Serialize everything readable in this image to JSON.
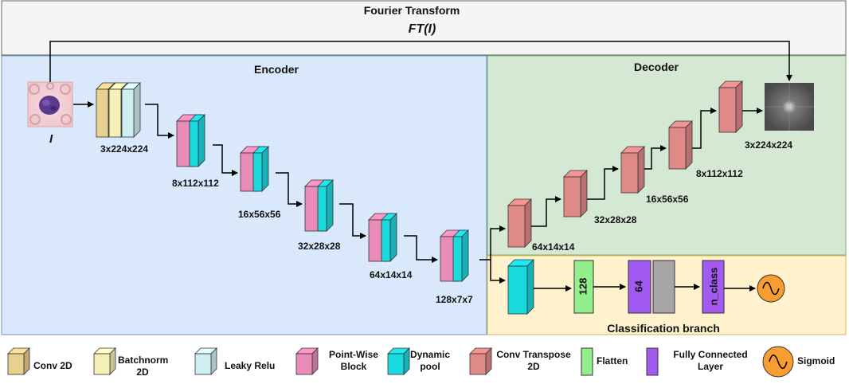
{
  "sections": {
    "fourier": {
      "title": "Fourier Transform",
      "formula": "FT(I)"
    },
    "encoder": {
      "title": "Encoder"
    },
    "decoder": {
      "title": "Decoder"
    },
    "classification": {
      "title": "Classification branch"
    }
  },
  "input_label": "I",
  "encoder_dims": [
    "3x224x224",
    "8x112x112",
    "16x56x56",
    "32x28x28",
    "64x14x14",
    "128x7x7"
  ],
  "decoder_dims": [
    "64x14x14",
    "32x28x28",
    "16x56x56",
    "8x112x112",
    "3x224x224"
  ],
  "classification_blocks": {
    "flatten": "128",
    "fc1": "64",
    "fc2": "n_class"
  },
  "legend": [
    {
      "label": "Conv 2D",
      "color": "#e8d08e"
    },
    {
      "label": "Batchnorm 2D",
      "color": "#f5efb8"
    },
    {
      "label": "Leaky Relu",
      "color": "#cfeef0"
    },
    {
      "label": "Point-Wise Block",
      "color": "#e98cb8"
    },
    {
      "label": "Dynamic pool",
      "color": "#1ad9df"
    },
    {
      "label": "Conv Transpose 2D",
      "color": "#e08a88"
    },
    {
      "label": "Flatten",
      "color": "#93ef8e"
    },
    {
      "label": "Fully Connected Layer",
      "color": "#a25af0"
    },
    {
      "label": "Sigmoid",
      "color": "#f79d32"
    }
  ],
  "colors": {
    "encoder_bg": "#dae8fc",
    "decoder_bg": "#d5e8d4",
    "classification_bg": "#fff2cc",
    "fourier_bg": "#f5f5f5",
    "gray_block": "#a6a6a6"
  }
}
